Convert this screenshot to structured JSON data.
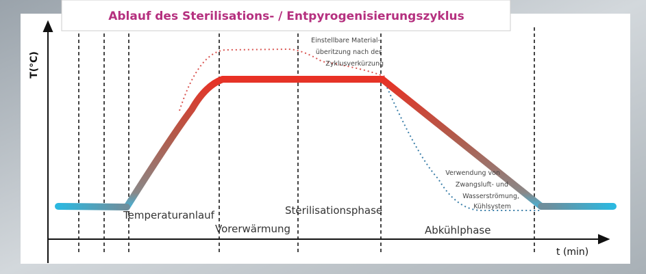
{
  "title": "Ablauf des Sterilisations- / Entpyrogenisierungszyklus",
  "y_axis_label": "T(°C)",
  "x_axis_label": "t (min)",
  "phases": [
    "Temperaturanlauf",
    "Vorerwärmung",
    "Sterilisationsphase",
    "Abkühlphase"
  ],
  "annotations": [
    [
      "Einstellbare Material-",
      "überitzung nach der",
      "Zyklusverkürzung"
    ],
    [
      "Verwendung von",
      "Zwangsluft- und",
      "Wasserströmung,",
      "Kühlsystem"
    ]
  ]
}
